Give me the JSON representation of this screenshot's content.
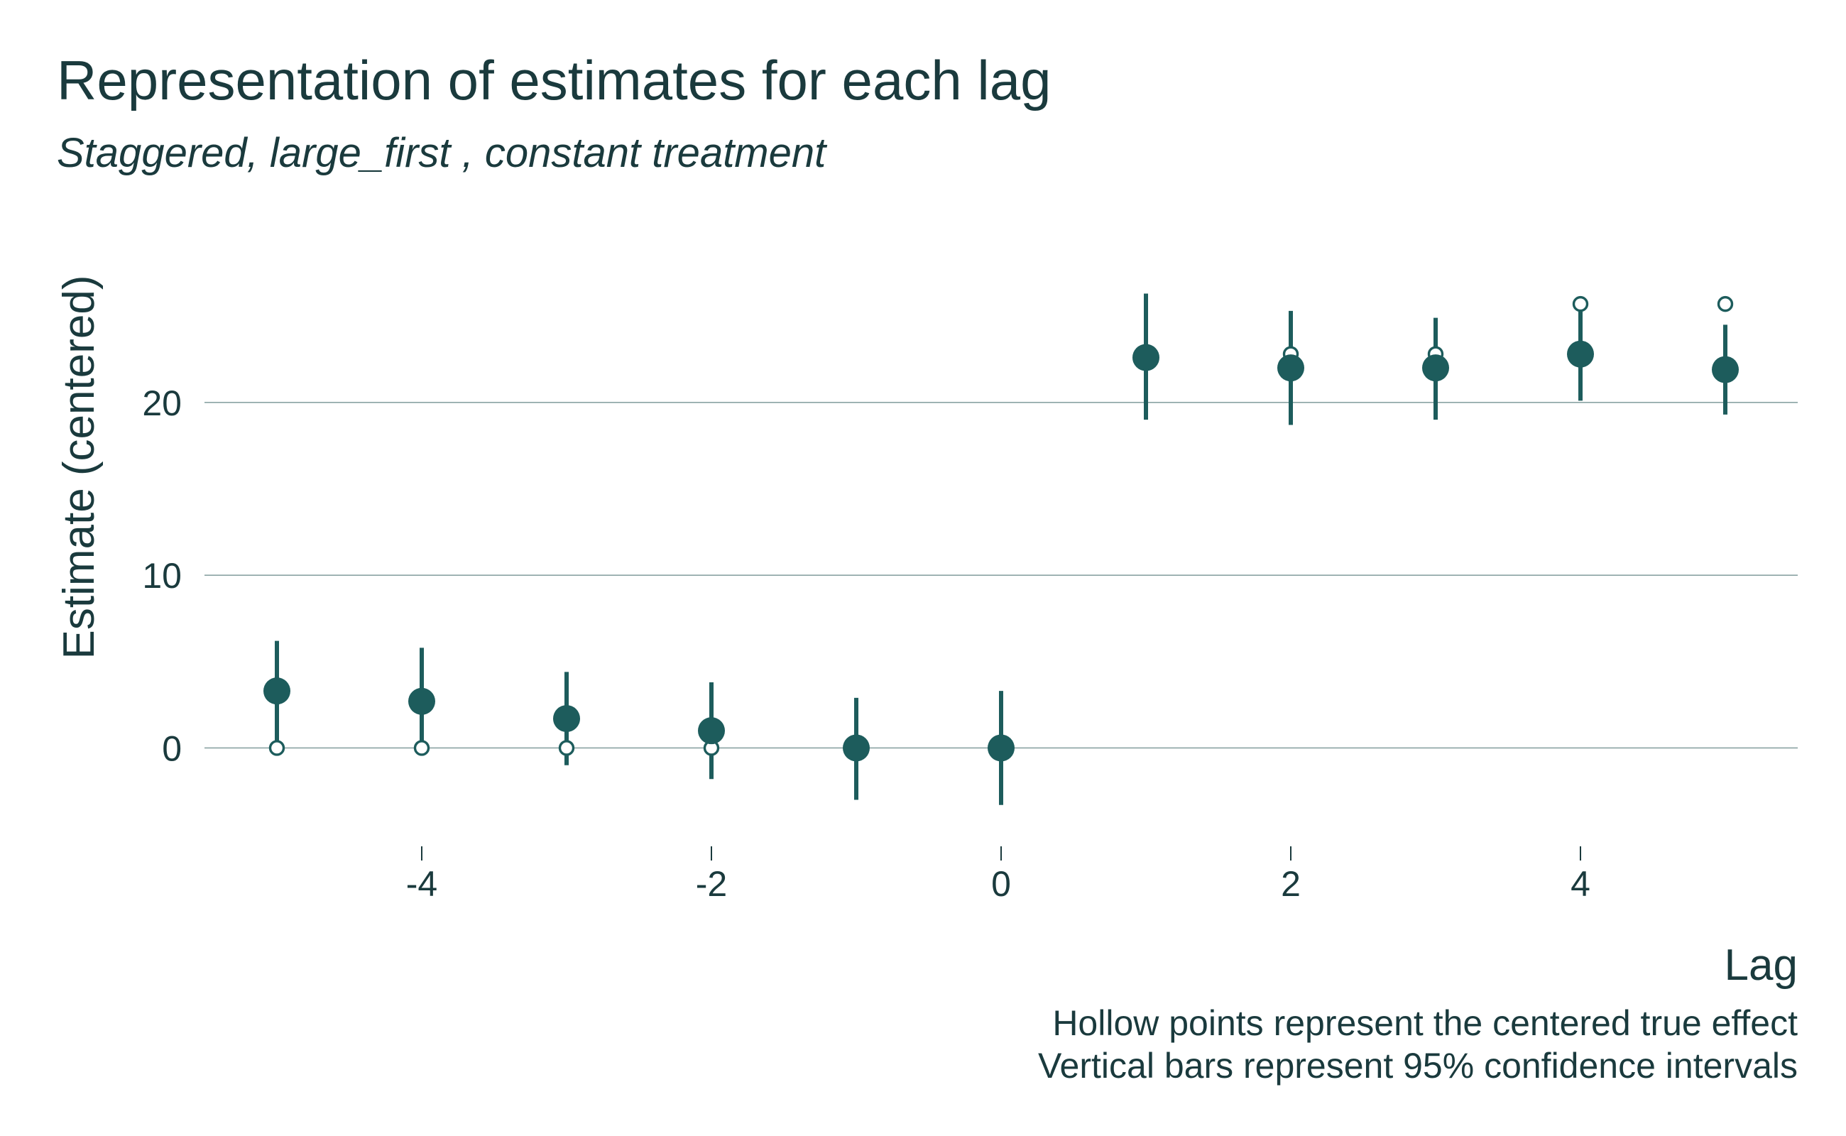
{
  "chart_data": {
    "type": "scatter",
    "title": "Representation of estimates for each lag",
    "subtitle": "Staggered, large_first , constant treatment",
    "xlabel": "Lag",
    "ylabel": "Estimate (centered)",
    "caption": [
      "Hollow points represent the centered true effect",
      "Vertical bars represent 95% confidence intervals"
    ],
    "xlim": [
      -5.5,
      5.5
    ],
    "ylim": [
      -5.2,
      28.5
    ],
    "x_ticks": [
      -4,
      -2,
      0,
      2,
      4
    ],
    "x_tick_labels": [
      "-4",
      "-2",
      "0",
      "2",
      "4"
    ],
    "y_ticks": [
      0,
      10,
      20
    ],
    "y_tick_labels": [
      "0",
      "10",
      "20"
    ],
    "grid": "horizontal",
    "colors": {
      "primary": "#1d5c5c",
      "text": "#1a3a3d",
      "grid": "#8aa3a3"
    },
    "series": [
      {
        "name": "Estimate",
        "marker": "filled",
        "x": [
          -5,
          -4,
          -3,
          -2,
          -1,
          0,
          1,
          2,
          3,
          4,
          5
        ],
        "y": [
          3.3,
          2.7,
          1.7,
          1.0,
          0.0,
          0.0,
          22.6,
          22.0,
          22.0,
          22.8,
          21.9
        ],
        "ci_low": [
          0.0,
          -0.4,
          -1.0,
          -1.8,
          -3.0,
          -3.3,
          19.0,
          18.7,
          19.0,
          20.1,
          19.3
        ],
        "ci_high": [
          6.2,
          5.8,
          4.4,
          3.8,
          2.9,
          3.3,
          26.3,
          25.3,
          24.9,
          25.7,
          24.5
        ]
      },
      {
        "name": "True effect",
        "marker": "hollow",
        "x": [
          -5,
          -4,
          -3,
          -2,
          2,
          3,
          4,
          5
        ],
        "y": [
          0,
          0,
          0,
          0,
          22.8,
          22.8,
          25.7,
          25.7
        ]
      }
    ]
  }
}
